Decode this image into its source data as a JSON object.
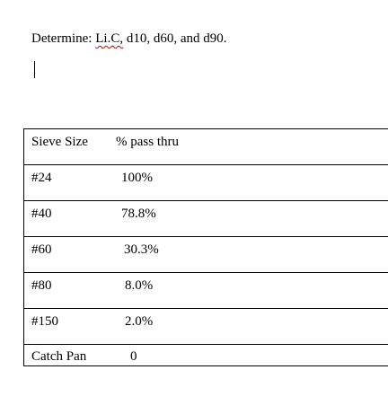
{
  "heading": {
    "prefix": "Determine: ",
    "term": "Li.C,",
    "suffix": " d10, d60, and d90."
  },
  "table": {
    "headers": [
      "Sieve Size",
      "% pass thru"
    ],
    "rows": [
      {
        "size": "#24",
        "pass": "100%"
      },
      {
        "size": "#40",
        "pass": "78.8%"
      },
      {
        "size": "#60",
        "pass": "30.3%"
      },
      {
        "size": "#80",
        "pass": "8.0%"
      },
      {
        "size": "#150",
        "pass": "2.0%"
      },
      {
        "size": "Catch Pan",
        "pass": "0"
      }
    ]
  }
}
